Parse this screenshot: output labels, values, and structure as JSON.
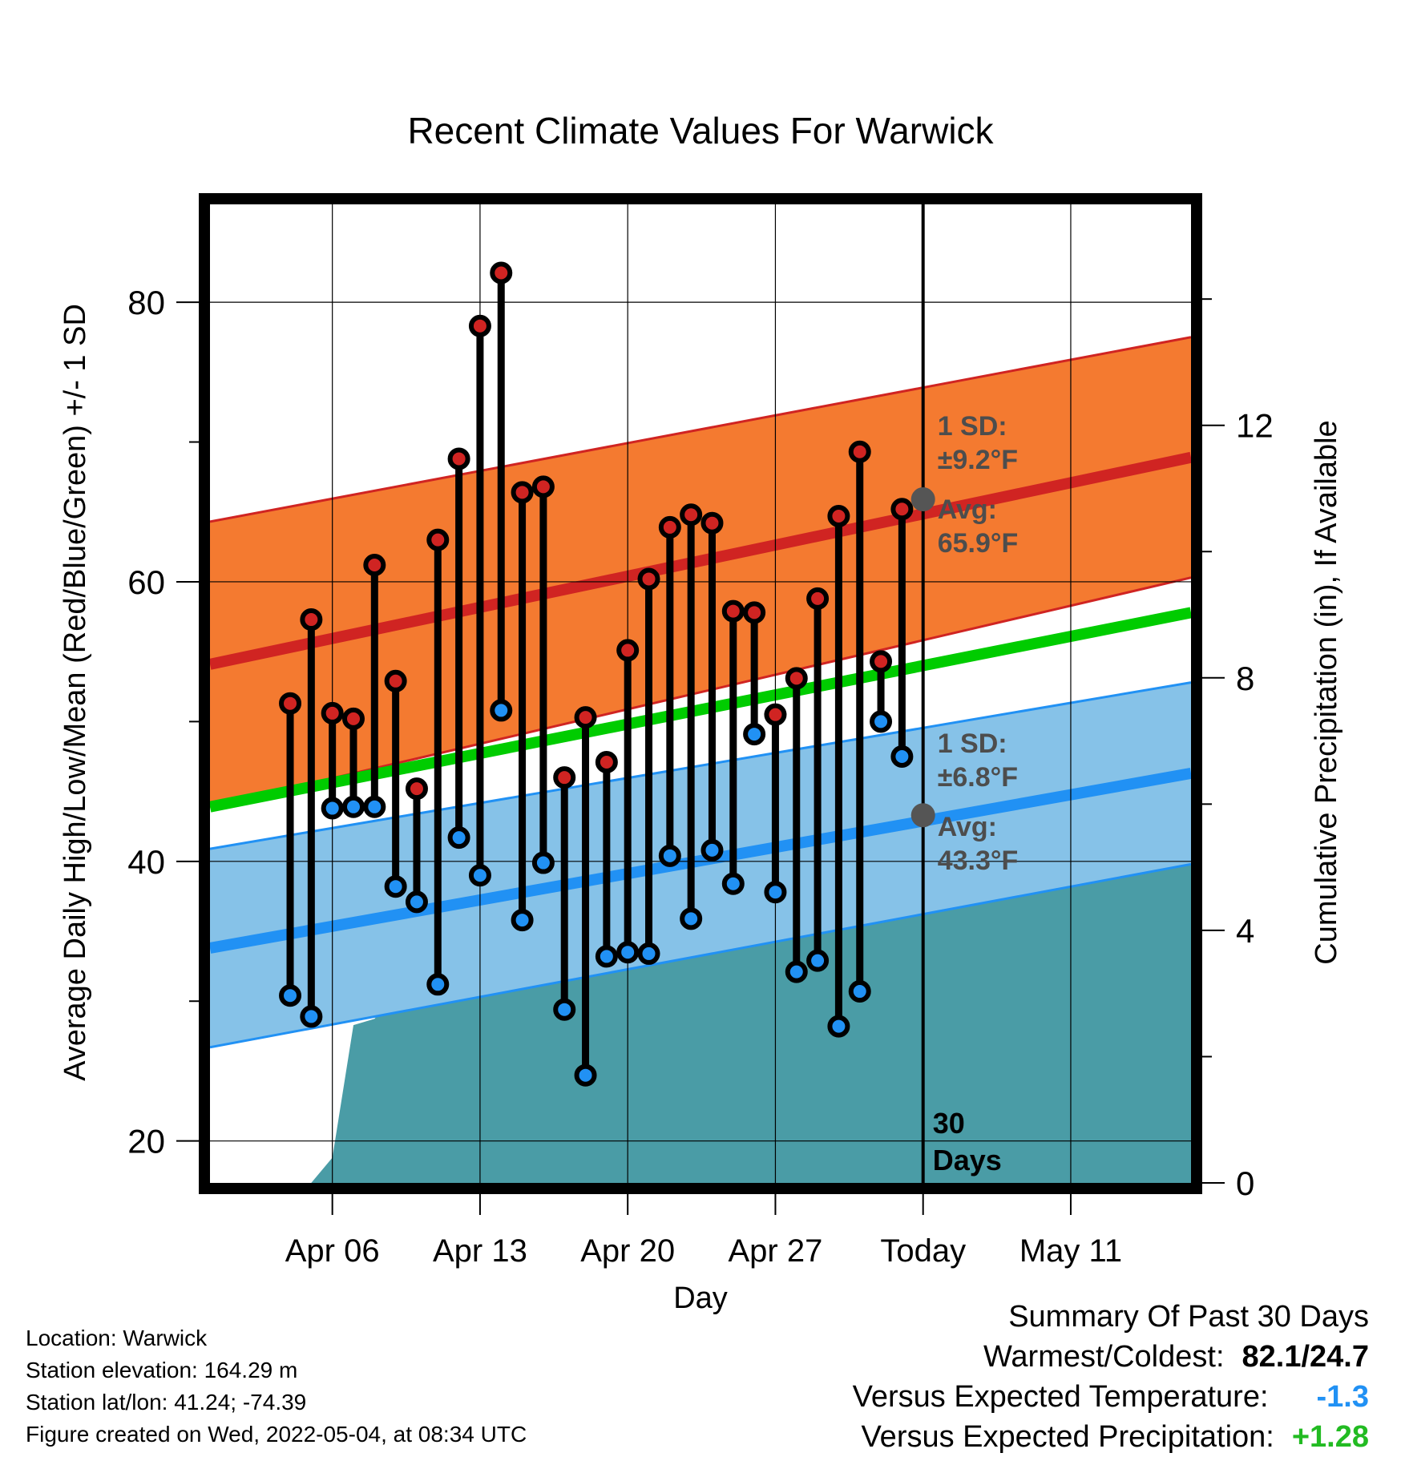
{
  "chart_data": {
    "type": "line",
    "title": "Recent Climate Values For Warwick",
    "xlabel": "Day",
    "ylabel": "Average Daily High/Low/Mean (Red/Blue/Green) +/- 1 SD",
    "y2label": "Cumulative Precipitation (in), If Available",
    "ylim": [
      17,
      87
    ],
    "y2lim": [
      0,
      15.5
    ],
    "xlim": [
      0.2,
      46.7
    ],
    "yticks": [
      "20",
      "40",
      "60",
      "80"
    ],
    "y2ticks": [
      "0",
      "4",
      "8",
      "12"
    ],
    "xticks": [
      {
        "x": 6,
        "label": "Apr 06"
      },
      {
        "x": 13,
        "label": "Apr 13"
      },
      {
        "x": 20,
        "label": "Apr 20"
      },
      {
        "x": 27,
        "label": "Apr 27"
      },
      {
        "x": 34,
        "label": "Today"
      },
      {
        "x": 41,
        "label": "May 11"
      }
    ],
    "grid": true,
    "today_x": 34,
    "today_label": [
      "30",
      "Days"
    ],
    "daily": [
      {
        "day": 4,
        "high": 51.3,
        "low": 30.4
      },
      {
        "day": 5,
        "high": 57.3,
        "low": 28.9
      },
      {
        "day": 6,
        "high": 50.6,
        "low": 43.8
      },
      {
        "day": 7,
        "high": 50.2,
        "low": 43.9
      },
      {
        "day": 8,
        "high": 61.2,
        "low": 43.9
      },
      {
        "day": 9,
        "high": 52.9,
        "low": 38.2
      },
      {
        "day": 10,
        "high": 45.2,
        "low": 37.1
      },
      {
        "day": 11,
        "high": 63.0,
        "low": 31.2
      },
      {
        "day": 12,
        "high": 68.8,
        "low": 41.7
      },
      {
        "day": 13,
        "high": 78.3,
        "low": 39.0
      },
      {
        "day": 14,
        "high": 82.1,
        "low": 50.8
      },
      {
        "day": 15,
        "high": 66.4,
        "low": 35.8
      },
      {
        "day": 16,
        "high": 66.8,
        "low": 39.9
      },
      {
        "day": 17,
        "high": 46.0,
        "low": 29.4
      },
      {
        "day": 18,
        "high": 50.3,
        "low": 24.7
      },
      {
        "day": 19,
        "high": 47.1,
        "low": 33.2
      },
      {
        "day": 20,
        "high": 55.1,
        "low": 33.5
      },
      {
        "day": 21,
        "high": 60.2,
        "low": 33.4
      },
      {
        "day": 22,
        "high": 63.9,
        "low": 40.4
      },
      {
        "day": 23,
        "high": 64.8,
        "low": 35.9
      },
      {
        "day": 24,
        "high": 64.2,
        "low": 40.8
      },
      {
        "day": 25,
        "high": 57.9,
        "low": 38.4
      },
      {
        "day": 26,
        "high": 57.8,
        "low": 49.1
      },
      {
        "day": 27,
        "high": 50.5,
        "low": 37.8
      },
      {
        "day": 28,
        "high": 53.1,
        "low": 32.1
      },
      {
        "day": 29,
        "high": 58.8,
        "low": 32.9
      },
      {
        "day": 30,
        "high": 64.7,
        "low": 28.2
      },
      {
        "day": 31,
        "high": 69.3,
        "low": 30.7
      },
      {
        "day": 32,
        "high": 54.3,
        "low": 50.0
      },
      {
        "day": 33,
        "high": 65.2,
        "low": 47.5
      }
    ],
    "normal_high": {
      "start": 54.1,
      "end": 68.9,
      "sd_start": 10.2,
      "sd_end": 8.6
    },
    "normal_low": {
      "start": 33.8,
      "end": 46.3,
      "sd_start": 7.1,
      "sd_end": 6.5
    },
    "normal_mean": {
      "start": 43.9,
      "end": 57.8
    },
    "precip": [
      [
        3.7,
        0.0
      ],
      [
        4.2,
        0.0
      ],
      [
        5.0,
        0.0
      ],
      [
        6.0,
        0.4
      ],
      [
        7.0,
        2.5
      ],
      [
        8.0,
        2.6
      ],
      [
        9.0,
        3.0
      ],
      [
        10.0,
        3.0
      ],
      [
        11.0,
        3.0
      ],
      [
        12.0,
        3.1
      ],
      [
        13.0,
        3.1
      ],
      [
        14.0,
        3.2
      ],
      [
        15.0,
        3.2
      ],
      [
        16.0,
        3.3
      ],
      [
        17.0,
        3.3
      ],
      [
        18.0,
        3.4
      ],
      [
        19.0,
        4.8
      ],
      [
        20.0,
        5.0
      ],
      [
        21.0,
        5.0
      ],
      [
        22.0,
        5.0
      ],
      [
        23.0,
        5.0
      ],
      [
        24.0,
        5.0
      ],
      [
        25.0,
        5.0
      ],
      [
        26.0,
        5.1
      ],
      [
        27.0,
        5.1
      ],
      [
        28.0,
        5.1
      ],
      [
        29.0,
        5.1
      ],
      [
        30.0,
        5.1
      ],
      [
        31.0,
        5.1
      ],
      [
        32.0,
        5.2
      ],
      [
        33.0,
        5.2
      ],
      [
        34.0,
        5.2
      ],
      [
        46.7,
        5.2
      ]
    ],
    "annotations": {
      "high": {
        "sd_title": "1 SD:",
        "sd_value": "±9.2°F",
        "avg_title": "Avg:",
        "avg_value": "65.9°F",
        "avg_y": 65.9
      },
      "low": {
        "sd_title": "1 SD:",
        "sd_value": "±6.8°F",
        "avg_title": "Avg:",
        "avg_value": "43.3°F",
        "avg_y": 43.3
      }
    },
    "colors": {
      "high_band": "#f47a30",
      "high_line": "#d02422",
      "low_band": "#86c2e8",
      "low_line": "#2191f4",
      "mean_line": "#00cc00",
      "precip": "#4a9ca6",
      "high_dot": "#d02422",
      "low_dot": "#2191f4"
    }
  },
  "info": {
    "location": "Location: Warwick",
    "elevation": "Station elevation: 164.29 m",
    "latlon": "Station lat/lon: 41.24; -74.39",
    "created": "Figure created on Wed, 2022-05-04, at 08:34 UTC"
  },
  "summary": {
    "title": "Summary Of Past 30 Days",
    "warmest_label": "Warmest/Coldest:",
    "warmest_value": "82.1/24.7",
    "temp_label": "Versus Expected Temperature:",
    "temp_value": "-1.3",
    "temp_color": "#2191f4",
    "precip_label": "Versus Expected Precipitation:",
    "precip_value": "+1.28",
    "precip_color": "#22bb22"
  }
}
